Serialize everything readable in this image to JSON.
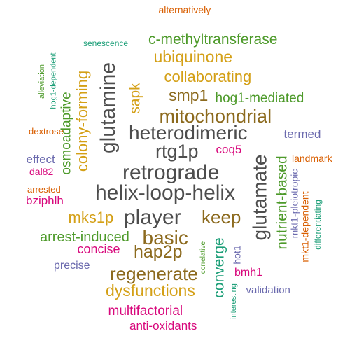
{
  "palette": {
    "dark_gray": "#4d4d4d",
    "brown": "#8c6a1e",
    "gold": "#d4a017",
    "olive_green": "#4d9a2a",
    "teal_green": "#1b9e77",
    "orange_red": "#d95f02",
    "magenta": "#d8087c",
    "slate_purple": "#6b6aae"
  },
  "words": [
    {
      "text": "alternatively"
    },
    {
      "text": "senescence"
    },
    {
      "text": "c-methyltransferase"
    },
    {
      "text": "hog1-dependent"
    },
    {
      "text": "alleviation"
    },
    {
      "text": "ubiquinone"
    },
    {
      "text": "glutamine"
    },
    {
      "text": "colony-forming"
    },
    {
      "text": "collaborating"
    },
    {
      "text": "osmoadaptive"
    },
    {
      "text": "smp1"
    },
    {
      "text": "sapk"
    },
    {
      "text": "hog1-mediated"
    },
    {
      "text": "mitochondrial"
    },
    {
      "text": "heterodimeric"
    },
    {
      "text": "dextrose"
    },
    {
      "text": "termed"
    },
    {
      "text": "rtg1p"
    },
    {
      "text": "coq5"
    },
    {
      "text": "effect"
    },
    {
      "text": "glutamate"
    },
    {
      "text": "landmark"
    },
    {
      "text": "dal82"
    },
    {
      "text": "retrograde"
    },
    {
      "text": "nutrient-based"
    },
    {
      "text": "arrested"
    },
    {
      "text": "mkt1-pleiotropic"
    },
    {
      "text": "helix-loop-helix"
    },
    {
      "text": "bziphlh"
    },
    {
      "text": "mkt1-dependent"
    },
    {
      "text": "differentiating"
    },
    {
      "text": "mks1p"
    },
    {
      "text": "player"
    },
    {
      "text": "keep"
    },
    {
      "text": "arrest-induced"
    },
    {
      "text": "basic"
    },
    {
      "text": "concise"
    },
    {
      "text": "hap2p"
    },
    {
      "text": "correlative"
    },
    {
      "text": "hot1"
    },
    {
      "text": "precise"
    },
    {
      "text": "converge"
    },
    {
      "text": "regenerate"
    },
    {
      "text": "bmh1"
    },
    {
      "text": "dysfunctions"
    },
    {
      "text": "interesting"
    },
    {
      "text": "validation"
    },
    {
      "text": "multifactorial"
    },
    {
      "text": "anti-oxidants"
    }
  ]
}
